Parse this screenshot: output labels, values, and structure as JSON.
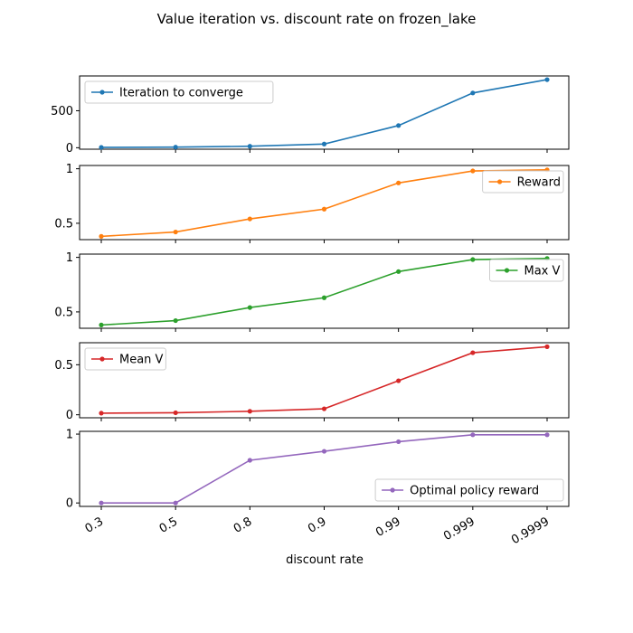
{
  "chart_data": {
    "type": "line",
    "title": "Value iteration vs. discount rate on frozen_lake",
    "xlabel": "discount rate",
    "categories": [
      "0.3",
      "0.5",
      "0.8",
      "0.9",
      "0.99",
      "0.999",
      "0.9999"
    ],
    "panels": [
      {
        "name": "Iteration to converge",
        "color": "#1f77b4",
        "values": [
          5,
          8,
          20,
          50,
          300,
          740,
          920
        ],
        "ylim": [
          -20,
          970
        ],
        "yticks": [
          0,
          500
        ],
        "legend": "upper-left"
      },
      {
        "name": "Reward",
        "color": "#ff7f0e",
        "values": [
          0.38,
          0.42,
          0.54,
          0.63,
          0.87,
          0.98,
          0.99
        ],
        "ylim": [
          0.35,
          1.03
        ],
        "yticks": [
          0.5,
          1.0
        ],
        "legend": "right"
      },
      {
        "name": "Max V",
        "color": "#2ca02c",
        "values": [
          0.38,
          0.42,
          0.54,
          0.63,
          0.87,
          0.98,
          0.99
        ],
        "ylim": [
          0.35,
          1.03
        ],
        "yticks": [
          0.5,
          1.0
        ],
        "legend": "right"
      },
      {
        "name": "Mean V",
        "color": "#d62728",
        "values": [
          0.016,
          0.02,
          0.035,
          0.06,
          0.34,
          0.62,
          0.68
        ],
        "ylim": [
          -0.03,
          0.72
        ],
        "yticks": [
          0.0,
          0.5
        ],
        "legend": "upper-left"
      },
      {
        "name": "Optimal policy reward",
        "color": "#9467bd",
        "values": [
          0,
          0,
          0.62,
          0.75,
          0.89,
          0.99,
          0.99
        ],
        "ylim": [
          -0.05,
          1.04
        ],
        "yticks": [
          0,
          1
        ],
        "legend": "lower-right"
      }
    ]
  }
}
